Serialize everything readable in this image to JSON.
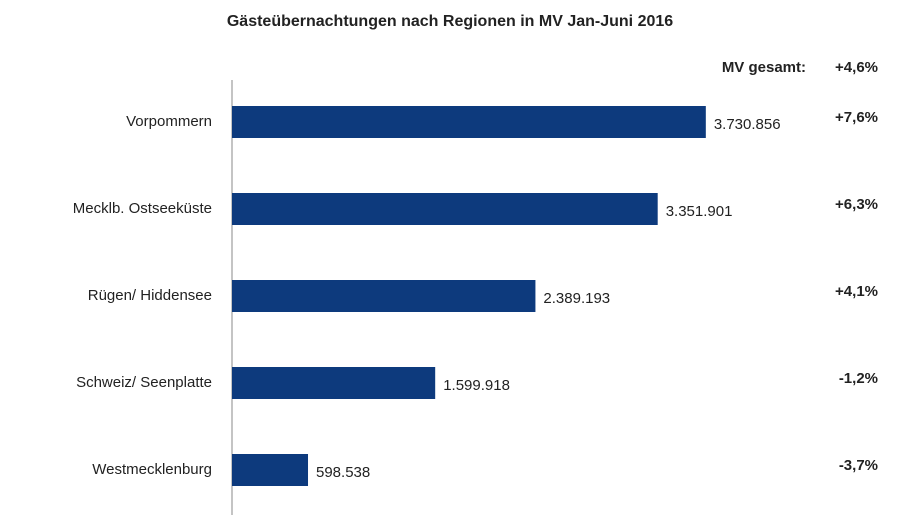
{
  "chart_data": {
    "type": "bar",
    "orientation": "horizontal",
    "title": "Gästeübernachtungen  nach Regionen  in MV Jan-Juni 2016",
    "categories": [
      "Vorpommern",
      "Mecklb. Ostseeküste",
      "Rügen/ Hiddensee",
      "Schweiz/ Seenplatte",
      "Westmecklenburg"
    ],
    "values": [
      3730856,
      3351901,
      2389193,
      1599918,
      598538
    ],
    "value_labels": [
      "3.730.856",
      "3.351.901",
      "2.389.193",
      "1.599.918",
      "598.538"
    ],
    "color": "#0d3a7d",
    "xlim": [
      0,
      4000000
    ],
    "changes": [
      {
        "value": 7.6,
        "label": "+7,6%"
      },
      {
        "value": 6.3,
        "label": "+6,3%"
      },
      {
        "value": 4.1,
        "label": "+4,1%"
      },
      {
        "value": -1.2,
        "label": "-1,2%"
      },
      {
        "value": -3.7,
        "label": "-3,7%"
      }
    ],
    "total": {
      "label": "MV gesamt:",
      "value": 4.6,
      "value_label": "+4,6%"
    },
    "positive_color": "#111111",
    "negative_color": "#c0182a"
  }
}
